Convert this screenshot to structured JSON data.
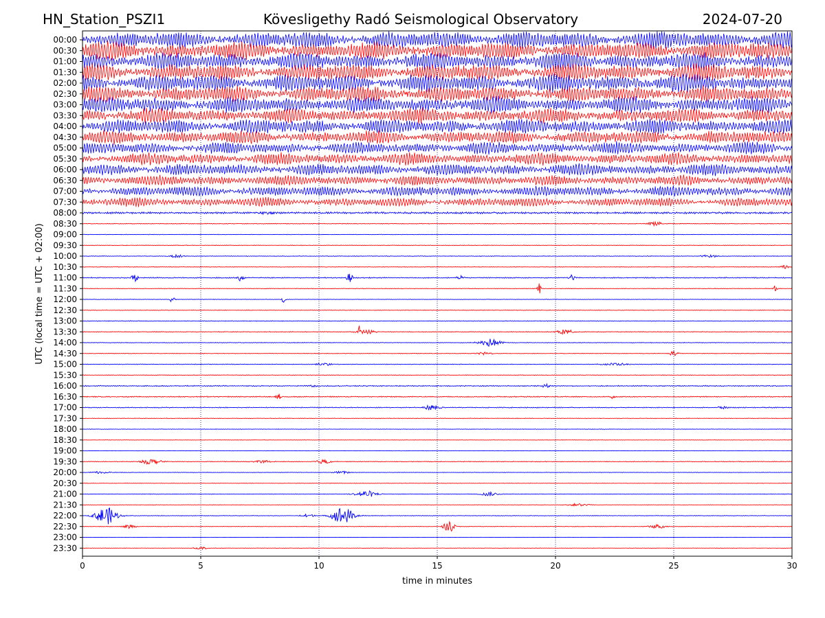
{
  "header": {
    "station": "HN_Station_PSZI1",
    "observatory": "Kövesligethy Radó Seismological Observatory",
    "date": "2024-07-20"
  },
  "chart_data": {
    "type": "line",
    "title": "Kövesligethy Radó Seismological Observatory",
    "xlabel": "time in minutes",
    "ylabel": "UTC (local time = UTC + 02:00)",
    "xlim": [
      0,
      30
    ],
    "x_ticks": [
      "0",
      "5",
      "10",
      "15",
      "20",
      "25",
      "30"
    ],
    "grid": "vertical dotted lines at 5-minute intervals",
    "colors": {
      "even_hour_traces": "#0000ff",
      "half_hour_traces": "#ff0000",
      "grid": "#00008b"
    },
    "traces": [
      {
        "label": "00:00",
        "amplitude": 12,
        "events": []
      },
      {
        "label": "00:30",
        "amplitude": 12,
        "events": []
      },
      {
        "label": "01:00",
        "amplitude": 12,
        "events": []
      },
      {
        "label": "01:30",
        "amplitude": 12,
        "events": []
      },
      {
        "label": "02:00",
        "amplitude": 12,
        "events": []
      },
      {
        "label": "02:30",
        "amplitude": 11,
        "events": []
      },
      {
        "label": "03:00",
        "amplitude": 11,
        "events": []
      },
      {
        "label": "03:30",
        "amplitude": 10,
        "events": []
      },
      {
        "label": "04:00",
        "amplitude": 10,
        "events": []
      },
      {
        "label": "04:30",
        "amplitude": 9,
        "events": []
      },
      {
        "label": "05:00",
        "amplitude": 8,
        "events": []
      },
      {
        "label": "05:30",
        "amplitude": 8,
        "events": []
      },
      {
        "label": "06:00",
        "amplitude": 8,
        "events": []
      },
      {
        "label": "06:30",
        "amplitude": 7,
        "events": []
      },
      {
        "label": "07:00",
        "amplitude": 7,
        "events": []
      },
      {
        "label": "07:30",
        "amplitude": 6,
        "events": []
      },
      {
        "label": "08:00",
        "amplitude": 1.5,
        "events": [
          {
            "t": 7.8,
            "dur": 0.8,
            "amp": 3
          }
        ]
      },
      {
        "label": "08:30",
        "amplitude": 0.5,
        "events": [
          {
            "t": 24.2,
            "dur": 0.6,
            "amp": 4
          }
        ]
      },
      {
        "label": "09:00",
        "amplitude": 0.4,
        "events": []
      },
      {
        "label": "09:30",
        "amplitude": 0.4,
        "events": []
      },
      {
        "label": "10:00",
        "amplitude": 0.5,
        "events": [
          {
            "t": 4.0,
            "dur": 0.8,
            "amp": 2
          },
          {
            "t": 26.5,
            "dur": 0.8,
            "amp": 2
          }
        ]
      },
      {
        "label": "10:30",
        "amplitude": 0.4,
        "events": [
          {
            "t": 29.7,
            "dur": 0.4,
            "amp": 3
          }
        ]
      },
      {
        "label": "11:00",
        "amplitude": 0.8,
        "events": [
          {
            "t": 2.2,
            "dur": 0.3,
            "amp": 6
          },
          {
            "t": 6.7,
            "dur": 0.3,
            "amp": 6
          },
          {
            "t": 11.3,
            "dur": 0.3,
            "amp": 7
          },
          {
            "t": 16.0,
            "dur": 0.3,
            "amp": 5
          },
          {
            "t": 20.7,
            "dur": 0.3,
            "amp": 5
          }
        ]
      },
      {
        "label": "11:30",
        "amplitude": 0.4,
        "events": [
          {
            "t": 19.3,
            "dur": 0.15,
            "amp": 9
          },
          {
            "t": 29.3,
            "dur": 0.2,
            "amp": 5
          }
        ]
      },
      {
        "label": "12:00",
        "amplitude": 0.4,
        "events": [
          {
            "t": 3.8,
            "dur": 0.2,
            "amp": 6
          },
          {
            "t": 8.5,
            "dur": 0.2,
            "amp": 5
          }
        ]
      },
      {
        "label": "12:30",
        "amplitude": 0.4,
        "events": []
      },
      {
        "label": "13:00",
        "amplitude": 0.5,
        "events": []
      },
      {
        "label": "13:30",
        "amplitude": 0.5,
        "events": [
          {
            "t": 12.0,
            "dur": 1.0,
            "amp": 3
          },
          {
            "t": 11.7,
            "dur": 0.1,
            "amp": 10
          },
          {
            "t": 20.4,
            "dur": 0.8,
            "amp": 4
          }
        ]
      },
      {
        "label": "14:00",
        "amplitude": 0.5,
        "events": [
          {
            "t": 17.2,
            "dur": 1.0,
            "amp": 6
          }
        ]
      },
      {
        "label": "14:30",
        "amplitude": 0.4,
        "events": [
          {
            "t": 25.0,
            "dur": 0.4,
            "amp": 4
          },
          {
            "t": 17.0,
            "dur": 0.8,
            "amp": 2
          }
        ]
      },
      {
        "label": "15:00",
        "amplitude": 0.5,
        "events": [
          {
            "t": 22.5,
            "dur": 1.2,
            "amp": 2
          },
          {
            "t": 10.2,
            "dur": 0.8,
            "amp": 2
          }
        ]
      },
      {
        "label": "15:30",
        "amplitude": 0.4,
        "events": []
      },
      {
        "label": "16:00",
        "amplitude": 0.8,
        "events": [
          {
            "t": 19.6,
            "dur": 0.3,
            "amp": 4
          },
          {
            "t": 9.8,
            "dur": 0.3,
            "amp": 3
          }
        ]
      },
      {
        "label": "16:30",
        "amplitude": 0.8,
        "events": [
          {
            "t": 8.3,
            "dur": 0.3,
            "amp": 4
          },
          {
            "t": 22.4,
            "dur": 0.2,
            "amp": 4
          }
        ]
      },
      {
        "label": "17:00",
        "amplitude": 0.7,
        "events": [
          {
            "t": 14.8,
            "dur": 0.8,
            "amp": 4
          },
          {
            "t": 27.0,
            "dur": 0.6,
            "amp": 2
          }
        ]
      },
      {
        "label": "17:30",
        "amplitude": 0.4,
        "events": []
      },
      {
        "label": "18:00",
        "amplitude": 0.4,
        "events": []
      },
      {
        "label": "18:30",
        "amplitude": 0.3,
        "events": []
      },
      {
        "label": "19:00",
        "amplitude": 0.3,
        "events": []
      },
      {
        "label": "19:30",
        "amplitude": 0.5,
        "events": [
          {
            "t": 2.9,
            "dur": 1.0,
            "amp": 4
          },
          {
            "t": 7.6,
            "dur": 0.8,
            "amp": 2
          },
          {
            "t": 10.2,
            "dur": 0.8,
            "amp": 3
          }
        ]
      },
      {
        "label": "20:00",
        "amplitude": 0.4,
        "events": [
          {
            "t": 0.8,
            "dur": 0.8,
            "amp": 2
          },
          {
            "t": 11.0,
            "dur": 0.8,
            "amp": 2
          }
        ]
      },
      {
        "label": "20:30",
        "amplitude": 0.3,
        "events": []
      },
      {
        "label": "21:00",
        "amplitude": 0.4,
        "events": [
          {
            "t": 12.0,
            "dur": 1.0,
            "amp": 5
          },
          {
            "t": 17.2,
            "dur": 0.8,
            "amp": 3
          }
        ]
      },
      {
        "label": "21:30",
        "amplitude": 0.3,
        "events": [
          {
            "t": 21.0,
            "dur": 1.0,
            "amp": 2
          }
        ]
      },
      {
        "label": "22:00",
        "amplitude": 0.5,
        "events": [
          {
            "t": 1.0,
            "dur": 1.0,
            "amp": 13
          },
          {
            "t": 11.0,
            "dur": 1.0,
            "amp": 13
          },
          {
            "t": 9.5,
            "dur": 0.6,
            "amp": 3
          }
        ]
      },
      {
        "label": "22:30",
        "amplitude": 0.4,
        "events": [
          {
            "t": 15.5,
            "dur": 0.5,
            "amp": 8
          },
          {
            "t": 24.3,
            "dur": 0.8,
            "amp": 3
          },
          {
            "t": 2.0,
            "dur": 0.6,
            "amp": 3
          }
        ]
      },
      {
        "label": "23:00",
        "amplitude": 0.2,
        "events": []
      },
      {
        "label": "23:30",
        "amplitude": 0.3,
        "events": [
          {
            "t": 5.0,
            "dur": 0.6,
            "amp": 2
          }
        ]
      }
    ]
  }
}
